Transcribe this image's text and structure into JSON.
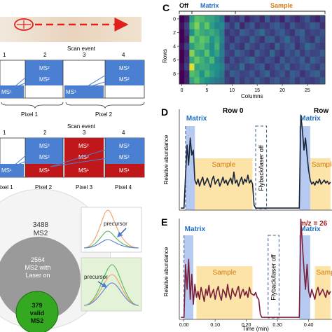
{
  "panel_letters": {
    "c": "C",
    "d": "D",
    "e": "E"
  },
  "scan_a": {
    "title": "Scan event",
    "events": [
      "1",
      "2",
      "3",
      "4"
    ],
    "pixels": [
      "Pixel 1",
      "Pixel 2"
    ],
    "ms1": "MS¹",
    "ms2": "MS²"
  },
  "scan_b": {
    "title": "Scan event",
    "events": [
      "1",
      "2",
      "3",
      "4"
    ],
    "pixels": [
      "ixel 1",
      "Pixel 2",
      "Pixel 3",
      "Pixel 4"
    ],
    "ms1": "MS¹",
    "ms2": "MS²"
  },
  "venn": {
    "outer_count": "3488",
    "outer_label": "MS2",
    "middle_count": "2564",
    "middle_label1": "MS2 with",
    "middle_label2": "Laser on",
    "inner_count": "379",
    "inner_label1": "valid",
    "inner_label2": "MS2"
  },
  "insets": {
    "precursor_top": "precursor",
    "precursor_bottom": "precursor"
  },
  "colors": {
    "ms2_blue": "#4a7fd1",
    "ms1_red": "#c0171b",
    "matrix_blue": "#1f6fc2",
    "sample_orange": "#d67a0f",
    "trace_dark": "#1a2438",
    "trace_maroon": "#7a1e3a",
    "laser_path": "#e0201c",
    "venn_green": "#34a820"
  },
  "chart_data": [
    {
      "type": "heatmap",
      "panel": "C",
      "title": "",
      "top_labels": {
        "off": "Off",
        "matrix": "Matrix",
        "sample": "Sample"
      },
      "xlabel": "Columns",
      "ylabel": "Rows",
      "x_ticks": [
        "0",
        "5",
        "10",
        "15",
        "20",
        "25"
      ],
      "y_ticks": [
        "0",
        "2",
        "4",
        "6",
        "8"
      ],
      "xlim": [
        -0.5,
        28.5
      ],
      "ylim": [
        -0.5,
        9.5
      ],
      "colormap": "viridis",
      "grid": [
        [
          0.0,
          0.1,
          0.55,
          0.72,
          0.68,
          0.6,
          0.58,
          0.52,
          0.4,
          0.1,
          0.2,
          0.15,
          0.25,
          0.1,
          0.18,
          0.22,
          0.12,
          0.3,
          0.15,
          0.2,
          0.1,
          0.25,
          0.18,
          0.12,
          0.2,
          0.28,
          0.15,
          0.1,
          0.2
        ],
        [
          0.05,
          0.2,
          0.65,
          0.8,
          0.6,
          0.75,
          0.55,
          0.45,
          0.48,
          0.25,
          0.18,
          0.3,
          0.12,
          0.22,
          0.28,
          0.15,
          0.2,
          0.18,
          0.25,
          0.3,
          0.22,
          0.15,
          0.28,
          0.2,
          0.18,
          0.22,
          0.3,
          0.25,
          0.15
        ],
        [
          0.0,
          0.15,
          0.5,
          0.7,
          0.62,
          0.58,
          0.62,
          0.55,
          0.42,
          0.15,
          0.22,
          0.18,
          0.3,
          0.25,
          0.2,
          0.28,
          0.35,
          0.22,
          0.18,
          0.25,
          0.3,
          0.2,
          0.15,
          0.28,
          0.32,
          0.18,
          0.22,
          0.2,
          0.25
        ],
        [
          0.0,
          0.1,
          0.78,
          0.62,
          0.74,
          0.68,
          0.52,
          0.6,
          0.45,
          0.2,
          0.15,
          0.25,
          0.2,
          0.18,
          0.32,
          0.22,
          0.15,
          0.28,
          0.3,
          0.18,
          0.25,
          0.35,
          0.22,
          0.18,
          0.28,
          0.2,
          0.15,
          0.3,
          0.22
        ],
        [
          0.05,
          0.2,
          0.55,
          0.66,
          0.7,
          0.58,
          0.48,
          0.65,
          0.4,
          0.18,
          0.28,
          0.2,
          0.15,
          0.3,
          0.22,
          0.18,
          0.25,
          0.2,
          0.15,
          0.32,
          0.2,
          0.25,
          0.3,
          0.15,
          0.22,
          0.35,
          0.28,
          0.2,
          0.18
        ],
        [
          0.0,
          0.12,
          0.82,
          0.6,
          0.55,
          0.72,
          0.5,
          0.58,
          0.42,
          0.22,
          0.18,
          0.32,
          0.25,
          0.2,
          0.15,
          0.3,
          0.22,
          0.18,
          0.35,
          0.2,
          0.15,
          0.28,
          0.22,
          0.3,
          0.18,
          0.25,
          0.2,
          0.22,
          0.3
        ],
        [
          0.0,
          0.15,
          0.6,
          0.76,
          0.64,
          0.55,
          0.68,
          0.45,
          0.38,
          0.15,
          0.25,
          0.18,
          0.22,
          0.28,
          0.35,
          0.2,
          0.18,
          0.25,
          0.22,
          0.15,
          0.3,
          0.2,
          0.25,
          0.22,
          0.3,
          0.18,
          0.32,
          0.25,
          0.2
        ],
        [
          0.05,
          0.2,
          0.95,
          0.58,
          0.62,
          0.6,
          0.52,
          0.5,
          0.44,
          0.25,
          0.2,
          0.22,
          0.35,
          0.18,
          0.2,
          0.25,
          0.3,
          0.15,
          0.2,
          0.28,
          0.22,
          0.32,
          0.18,
          0.2,
          0.25,
          0.3,
          0.22,
          0.18,
          0.28
        ],
        [
          0.0,
          0.1,
          0.7,
          0.64,
          0.5,
          0.66,
          0.56,
          0.48,
          0.4,
          0.18,
          0.3,
          0.25,
          0.2,
          0.22,
          0.28,
          0.18,
          0.25,
          0.32,
          0.18,
          0.22,
          0.28,
          0.18,
          0.3,
          0.25,
          0.15,
          0.22,
          0.28,
          0.32,
          0.2
        ],
        [
          0.0,
          0.12,
          0.58,
          0.7,
          0.56,
          0.5,
          0.45,
          0.4,
          0.36,
          0.2,
          0.15,
          0.28,
          0.18,
          0.25,
          0.2,
          0.3,
          0.22,
          0.18,
          0.25,
          0.3,
          0.2,
          0.22,
          0.28,
          0.18,
          0.25,
          0.2,
          0.18,
          0.22,
          0.3
        ]
      ]
    },
    {
      "type": "line",
      "panel": "D",
      "title": "Row 0",
      "title_right": "Row",
      "ylabel": "Relative abundance",
      "region_labels": {
        "matrix": "Matrix",
        "sample": "Sample",
        "flyback": "Flyback/laser off"
      },
      "regions": {
        "matrix1": [
          0.005,
          0.035
        ],
        "sample1": [
          0.035,
          0.22
        ],
        "flyback": [
          0.23,
          0.265
        ],
        "matrix2": [
          0.37,
          0.405
        ],
        "sample2": [
          0.405,
          0.47
        ]
      },
      "xlim": [
        -0.015,
        0.475
      ],
      "ylim": [
        0,
        1.05
      ],
      "series": [
        {
          "x": [
            -0.01,
            0.0,
            0.005,
            0.01,
            0.015,
            0.02,
            0.025,
            0.03,
            0.035,
            0.04,
            0.045,
            0.05,
            0.055,
            0.06,
            0.065,
            0.07,
            0.075,
            0.08,
            0.085,
            0.09,
            0.095,
            0.1,
            0.105,
            0.11,
            0.115,
            0.12,
            0.125,
            0.13,
            0.135,
            0.14,
            0.145,
            0.15,
            0.155,
            0.16,
            0.165,
            0.17,
            0.175,
            0.18,
            0.185,
            0.19,
            0.195,
            0.2,
            0.205,
            0.21,
            0.215,
            0.22,
            0.225,
            0.23,
            0.235,
            0.24,
            0.245,
            0.25,
            0.255,
            0.26,
            0.265,
            0.27,
            0.275,
            0.28,
            0.285,
            0.29,
            0.295,
            0.3,
            0.305,
            0.31,
            0.315,
            0.32,
            0.325,
            0.33,
            0.335,
            0.34,
            0.345,
            0.35,
            0.355,
            0.36,
            0.365,
            0.37,
            0.375,
            0.38,
            0.385,
            0.39,
            0.395,
            0.4,
            0.405,
            0.41,
            0.415,
            0.42,
            0.425,
            0.43,
            0.435,
            0.44,
            0.445,
            0.45,
            0.455,
            0.46,
            0.465,
            0.47
          ],
          "y": [
            0.02,
            0.02,
            0.35,
            0.65,
            0.45,
            0.72,
            0.55,
            0.6,
            0.3,
            0.26,
            0.31,
            0.24,
            0.29,
            0.33,
            0.25,
            0.28,
            0.32,
            0.27,
            0.23,
            0.3,
            0.34,
            0.26,
            0.29,
            0.31,
            0.24,
            0.28,
            0.33,
            0.27,
            0.3,
            0.25,
            0.29,
            0.32,
            0.26,
            0.38,
            0.27,
            0.3,
            0.24,
            0.29,
            0.33,
            0.26,
            0.31,
            0.28,
            0.35,
            0.27,
            0.3,
            0.26,
            0.05,
            0.02,
            0.02,
            0.02,
            0.02,
            0.02,
            0.02,
            0.02,
            0.02,
            0.02,
            0.02,
            0.02,
            0.02,
            0.02,
            0.02,
            0.02,
            0.02,
            0.02,
            0.02,
            0.02,
            0.02,
            0.02,
            0.02,
            0.02,
            0.02,
            0.02,
            0.02,
            0.02,
            0.02,
            0.02,
            0.95,
            0.8,
            0.6,
            0.72,
            0.55,
            0.4,
            0.3,
            0.26,
            0.28,
            0.25,
            0.29,
            0.27,
            0.31,
            0.26,
            0.28,
            0.3,
            0.27,
            0.29,
            0.26,
            0.28
          ]
        }
      ]
    },
    {
      "type": "line",
      "panel": "E",
      "title": "m/z = 26",
      "ylabel": "Relative abundance",
      "xlabel": "Time (min)",
      "x_ticks": [
        "0.00",
        "0.10",
        "0.20",
        "0.30",
        "0.40"
      ],
      "region_labels": {
        "matrix": "Matrix",
        "sample": "Sample",
        "flyback": "Flyback/laser off"
      },
      "regions": {
        "matrix1": [
          0.0,
          0.03
        ],
        "sample1": [
          0.04,
          0.22
        ],
        "flyback": [
          0.27,
          0.305
        ],
        "matrix2": [
          0.37,
          0.405
        ],
        "sample2": [
          0.42,
          0.47
        ]
      },
      "xlim": [
        -0.015,
        0.475
      ],
      "ylim": [
        0,
        1.05
      ],
      "series": [
        {
          "x": [
            -0.01,
            0.0,
            0.005,
            0.01,
            0.015,
            0.02,
            0.025,
            0.03,
            0.035,
            0.04,
            0.045,
            0.05,
            0.055,
            0.06,
            0.065,
            0.07,
            0.075,
            0.08,
            0.085,
            0.09,
            0.095,
            0.1,
            0.105,
            0.11,
            0.115,
            0.12,
            0.125,
            0.13,
            0.135,
            0.14,
            0.145,
            0.15,
            0.155,
            0.16,
            0.165,
            0.17,
            0.175,
            0.18,
            0.185,
            0.19,
            0.195,
            0.2,
            0.205,
            0.21,
            0.215,
            0.22,
            0.225,
            0.23,
            0.235,
            0.24,
            0.245,
            0.25,
            0.255,
            0.26,
            0.265,
            0.27,
            0.275,
            0.28,
            0.285,
            0.29,
            0.295,
            0.3,
            0.305,
            0.31,
            0.315,
            0.32,
            0.325,
            0.33,
            0.335,
            0.34,
            0.345,
            0.35,
            0.355,
            0.36,
            0.365,
            0.37,
            0.375,
            0.38,
            0.385,
            0.39,
            0.395,
            0.4,
            0.405,
            0.41,
            0.415,
            0.42,
            0.425,
            0.43,
            0.435,
            0.44,
            0.445,
            0.45,
            0.455,
            0.46,
            0.465,
            0.47
          ],
          "y": [
            0.02,
            0.02,
            0.55,
            0.3,
            0.6,
            0.2,
            0.45,
            0.15,
            0.35,
            0.22,
            0.28,
            0.2,
            0.32,
            0.25,
            0.18,
            0.3,
            0.24,
            0.34,
            0.22,
            0.26,
            0.3,
            0.2,
            0.28,
            0.33,
            0.24,
            0.19,
            0.3,
            0.27,
            0.22,
            0.35,
            0.25,
            0.2,
            0.31,
            0.26,
            0.23,
            0.29,
            0.33,
            0.21,
            0.27,
            0.3,
            0.24,
            0.28,
            0.22,
            0.32,
            0.26,
            0.25,
            0.24,
            0.27,
            0.22,
            0.2,
            0.05,
            0.02,
            0.02,
            0.02,
            0.02,
            0.02,
            0.02,
            0.02,
            0.02,
            0.02,
            0.02,
            0.02,
            0.02,
            0.02,
            0.02,
            0.02,
            0.02,
            0.02,
            0.02,
            0.02,
            0.02,
            0.02,
            0.02,
            0.02,
            0.02,
            0.02,
            1.0,
            0.75,
            0.5,
            0.3,
            0.55,
            0.28,
            0.22,
            0.3,
            0.25,
            0.2,
            0.28,
            0.32,
            0.24,
            0.27,
            0.3,
            0.26,
            0.22,
            0.29,
            0.25,
            0.28
          ]
        }
      ]
    }
  ]
}
